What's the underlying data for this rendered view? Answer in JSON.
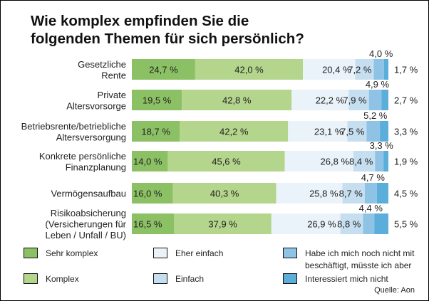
{
  "chart_data": {
    "type": "bar",
    "orientation": "horizontal",
    "stacked": true,
    "title": "Wie komplex empfinden Sie die folgenden Themen für sich persönlich?",
    "title_lines": [
      "Wie komplex empfinden Sie die",
      "folgenden Themen für sich persönlich?"
    ],
    "categories": [
      [
        "Gesetzliche",
        "Rente"
      ],
      [
        "Private",
        "Altersvorsorge"
      ],
      [
        "Betriebsrente/betriebliche",
        "Altersversorgung"
      ],
      [
        "Konkrete persönliche",
        "Finanzplanung"
      ],
      [
        "Vermögensaufbau"
      ],
      [
        "Risikoabsicherung",
        "(Versicherungen für",
        "Leben / Unfall / BU)"
      ]
    ],
    "series": [
      {
        "name": "Sehr komplex",
        "color": "#8cc065",
        "values": [
          24.7,
          19.5,
          18.7,
          14.0,
          16.0,
          16.5
        ]
      },
      {
        "name": "Komplex",
        "color": "#b4d58c",
        "values": [
          42.0,
          42.8,
          42.2,
          45.6,
          40.3,
          37.9
        ]
      },
      {
        "name": "Eher einfach",
        "color": "#eaf3f9",
        "values": [
          20.4,
          22.2,
          23.1,
          26.8,
          25.8,
          26.9
        ]
      },
      {
        "name": "Einfach",
        "color": "#c6dff0",
        "values": [
          7.2,
          7.9,
          7.5,
          8.4,
          8.7,
          8.8
        ]
      },
      {
        "name": "Habe ich mich noch nicht mit beschäftigt, müsste ich aber",
        "color": "#8fc3e5",
        "values": [
          4.0,
          4.9,
          5.2,
          3.3,
          4.7,
          4.4
        ]
      },
      {
        "name": "Interessiert mich nicht",
        "color": "#5aaed9",
        "values": [
          1.7,
          2.7,
          3.3,
          1.9,
          4.5,
          5.5
        ]
      }
    ],
    "value_labels": [
      [
        "24,7 %",
        "42,0 %",
        "20,4 %",
        "7,2 %",
        "4,0 %",
        "1,7 %"
      ],
      [
        "19,5 %",
        "42,8 %",
        "22,2 %",
        "7,9 %",
        "4,9 %",
        "2,7 %"
      ],
      [
        "18,7 %",
        "42,2 %",
        "23,1 %",
        "7,5 %",
        "5,2 %",
        "3,3 %"
      ],
      [
        "14,0 %",
        "45,6 %",
        "26,8 %",
        "8,4 %",
        "3,3 %",
        "1,9 %"
      ],
      [
        "16,0 %",
        "40,3 %",
        "25,8 %",
        "8,7 %",
        "4,7 %",
        "4,5 %"
      ],
      [
        "16,5 %",
        "37,9 %",
        "26,9 %",
        "8,8 %",
        "4,4 %",
        "5,5 %"
      ]
    ],
    "xlim": [
      0,
      100
    ],
    "xlabel": "",
    "ylabel": "",
    "grid": false,
    "legend_position": "bottom",
    "legend": [
      [
        "Sehr komplex"
      ],
      [
        "Komplex"
      ],
      [
        "Eher einfach"
      ],
      [
        "Einfach"
      ],
      [
        "Habe ich mich noch nicht mit",
        "beschäftigt, müsste ich aber"
      ],
      [
        "Interessiert mich nicht"
      ]
    ],
    "source": "Quelle: Aon"
  }
}
